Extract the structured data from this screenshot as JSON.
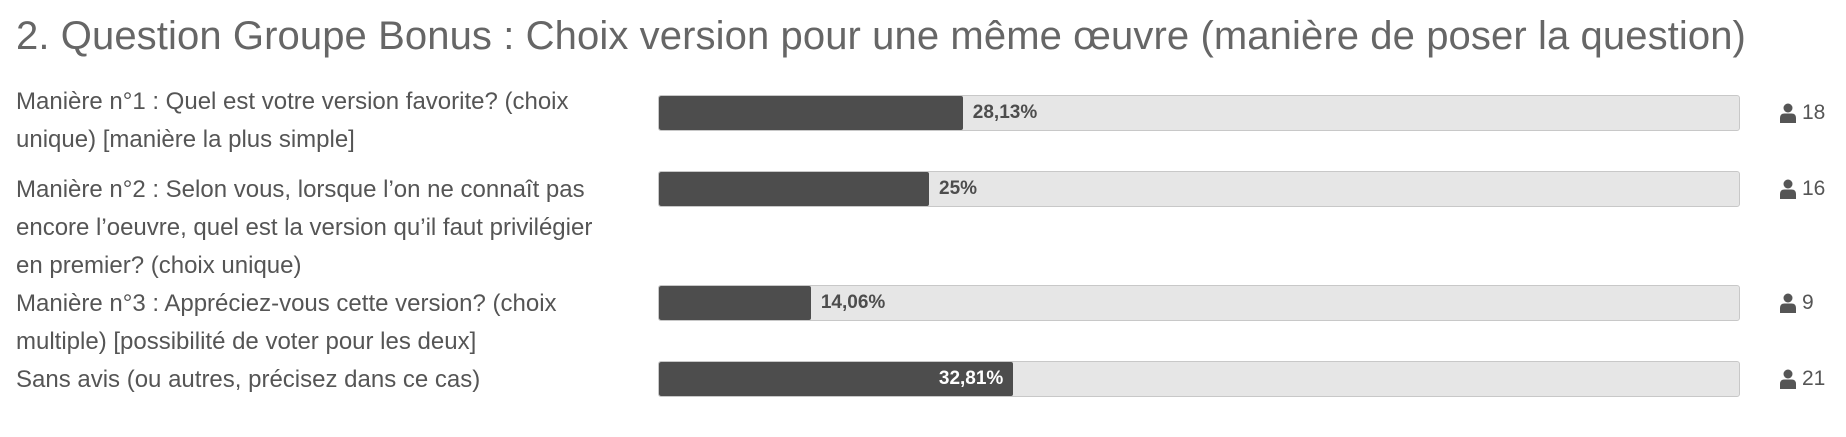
{
  "poll": {
    "title": "2. Question Groupe Bonus : Choix version pour une même œuvre (manière de poser la question)",
    "icon": "user-icon",
    "colors": {
      "bar_fill": "#4d4d4d",
      "bar_track": "#e6e6e6"
    },
    "options": [
      {
        "label": "Manière n°1 : Quel est votre version favorite? (choix unique) [manière la plus simple]",
        "percent_label": "28,13%",
        "percent": 28.13,
        "votes": "18"
      },
      {
        "label": "Manière n°2 : Selon vous, lorsque l’on ne connaît pas encore l’oeuvre, quel est la version qu’il faut privilégier en premier? (choix unique)",
        "percent_label": "25%",
        "percent": 25,
        "votes": "16"
      },
      {
        "label": "Manière n°3 : Appréciez-vous cette version? (choix multiple) [possibilité de voter pour les deux]",
        "percent_label": "14,06%",
        "percent": 14.06,
        "votes": "9"
      },
      {
        "label": "Sans avis (ou autres, précisez dans ce cas)",
        "percent_label": "32,81%",
        "percent": 32.81,
        "votes": "21"
      }
    ]
  }
}
